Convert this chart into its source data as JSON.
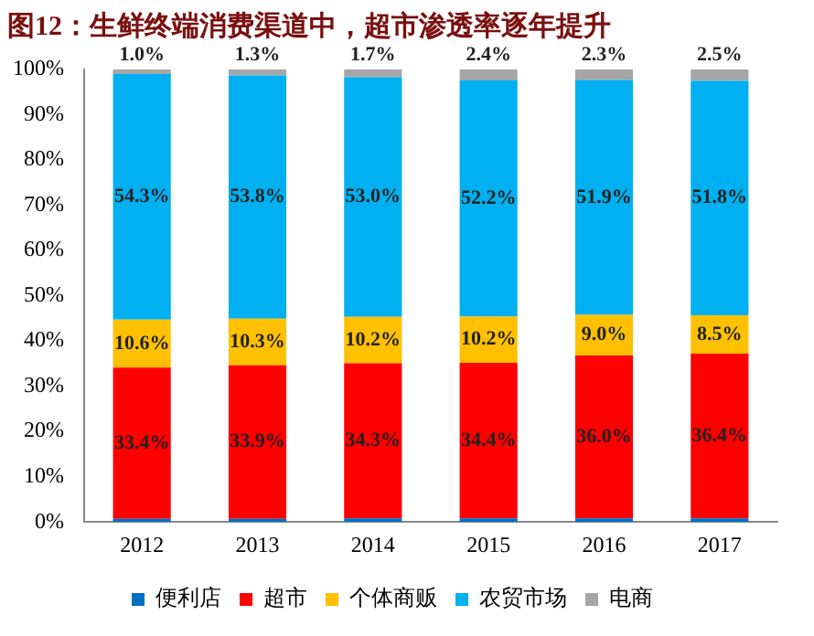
{
  "chart_data": {
    "type": "bar",
    "title": "图12：生鲜终端消费渠道中，超市渗透率逐年提升",
    "stacked": true,
    "categories": [
      "2012",
      "2013",
      "2014",
      "2015",
      "2016",
      "2017"
    ],
    "series": [
      {
        "name": "便利店",
        "color": "#0070c0",
        "values": [
          0.7,
          0.7,
          0.8,
          0.8,
          0.8,
          0.8
        ]
      },
      {
        "name": "超市",
        "color": "#ff0000",
        "values": [
          33.4,
          33.9,
          34.3,
          34.4,
          36.0,
          36.4
        ],
        "value_labels": [
          "33.4%",
          "33.9%",
          "34.3%",
          "34.4%",
          "36.0%",
          "36.4%"
        ]
      },
      {
        "name": "个体商贩",
        "color": "#ffc000",
        "values": [
          10.6,
          10.3,
          10.2,
          10.2,
          9.0,
          8.5
        ],
        "value_labels": [
          "10.6%",
          "10.3%",
          "10.2%",
          "10.2%",
          "9.0%",
          "8.5%"
        ]
      },
      {
        "name": "农贸市场",
        "color": "#00b0f0",
        "values": [
          54.3,
          53.8,
          53.0,
          52.2,
          51.9,
          51.8
        ],
        "value_labels": [
          "54.3%",
          "53.8%",
          "53.0%",
          "52.2%",
          "51.9%",
          "51.8%"
        ]
      },
      {
        "name": "电商",
        "color": "#a6a6a6",
        "values": [
          1.0,
          1.3,
          1.7,
          2.4,
          2.3,
          2.5
        ],
        "value_labels": [
          "1.0%",
          "1.3%",
          "1.7%",
          "2.4%",
          "2.3%",
          "2.5%"
        ]
      }
    ],
    "ylim": [
      0,
      100
    ],
    "yticks": [
      {
        "value": 0,
        "label": "0%"
      },
      {
        "value": 10,
        "label": "10%"
      },
      {
        "value": 20,
        "label": "20%"
      },
      {
        "value": 30,
        "label": "30%"
      },
      {
        "value": 40,
        "label": "40%"
      },
      {
        "value": 50,
        "label": "50%"
      },
      {
        "value": 60,
        "label": "60%"
      },
      {
        "value": 70,
        "label": "70%"
      },
      {
        "value": 80,
        "label": "80%"
      },
      {
        "value": 90,
        "label": "90%"
      },
      {
        "value": 100,
        "label": "100%"
      }
    ],
    "grid": false,
    "legend": "bottom"
  }
}
